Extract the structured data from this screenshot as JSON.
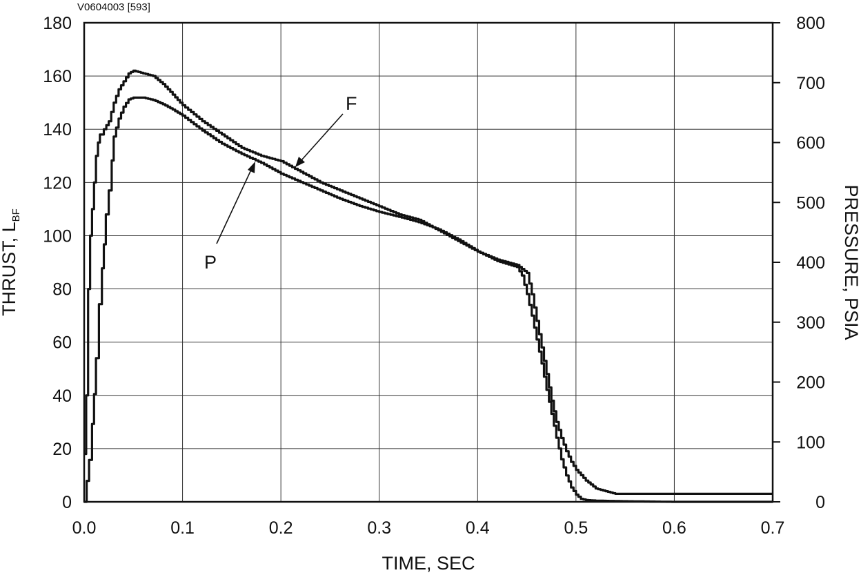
{
  "figure_id": "V0604003 [593]",
  "chart_data": {
    "type": "line",
    "xlabel": "TIME, SEC",
    "ylabel_main": "THRUST, L",
    "ylabel_sub": "BF",
    "y2label": "PRESSURE, PSIA",
    "xlim": [
      0,
      0.7
    ],
    "ylim": [
      0,
      180
    ],
    "y2lim": [
      0,
      800
    ],
    "x_ticks": [
      "0.0",
      "0.1",
      "0.2",
      "0.3",
      "0.4",
      "0.5",
      "0.6",
      "0.7"
    ],
    "y_ticks": [
      "0",
      "20",
      "40",
      "60",
      "80",
      "100",
      "120",
      "140",
      "160",
      "180"
    ],
    "y2_ticks": [
      "0",
      "100",
      "200",
      "300",
      "400",
      "500",
      "600",
      "700",
      "800"
    ],
    "grid": true,
    "series": [
      {
        "name": "F",
        "axis": "left",
        "x": [
          0.0,
          0.002,
          0.004,
          0.006,
          0.008,
          0.01,
          0.012,
          0.014,
          0.016,
          0.02,
          0.025,
          0.03,
          0.035,
          0.04,
          0.045,
          0.05,
          0.06,
          0.07,
          0.08,
          0.09,
          0.1,
          0.12,
          0.14,
          0.16,
          0.18,
          0.2,
          0.22,
          0.24,
          0.26,
          0.28,
          0.3,
          0.32,
          0.34,
          0.36,
          0.38,
          0.4,
          0.42,
          0.44,
          0.45,
          0.455,
          0.46,
          0.465,
          0.47,
          0.475,
          0.48,
          0.485,
          0.49,
          0.495,
          0.5,
          0.51,
          0.52,
          0.53,
          0.54,
          0.55,
          0.6,
          0.65,
          0.7
        ],
        "y": [
          18,
          40,
          80,
          100,
          110,
          120,
          130,
          135,
          138,
          140,
          143,
          150,
          155,
          158,
          161,
          162,
          161,
          160,
          157,
          153,
          149,
          143,
          138,
          133,
          130,
          128,
          124,
          120,
          117,
          114,
          111,
          108,
          106,
          102,
          98,
          94,
          91,
          89,
          86,
          78,
          68,
          58,
          48,
          38,
          30,
          24,
          19,
          15,
          12,
          8,
          5,
          4,
          3,
          3,
          3,
          3,
          3
        ]
      },
      {
        "name": "P",
        "axis": "right",
        "x": [
          0.0,
          0.005,
          0.008,
          0.01,
          0.012,
          0.015,
          0.018,
          0.02,
          0.022,
          0.025,
          0.028,
          0.03,
          0.035,
          0.04,
          0.045,
          0.05,
          0.06,
          0.07,
          0.08,
          0.09,
          0.1,
          0.12,
          0.14,
          0.16,
          0.18,
          0.2,
          0.22,
          0.24,
          0.26,
          0.28,
          0.3,
          0.32,
          0.34,
          0.36,
          0.38,
          0.4,
          0.42,
          0.44,
          0.445,
          0.45,
          0.455,
          0.46,
          0.465,
          0.47,
          0.475,
          0.48,
          0.485,
          0.49,
          0.495,
          0.5,
          0.505,
          0.51,
          0.52,
          0.55,
          0.6,
          0.65,
          0.7
        ],
        "y": [
          0,
          70,
          130,
          180,
          240,
          330,
          390,
          430,
          480,
          520,
          570,
          610,
          640,
          660,
          672,
          675,
          675,
          671,
          664,
          655,
          645,
          620,
          598,
          581,
          566,
          548,
          534,
          520,
          506,
          494,
          484,
          476,
          467,
          455,
          438,
          418,
          402,
          392,
          378,
          347,
          311,
          271,
          231,
          187,
          147,
          107,
          71,
          44,
          24,
          12,
          5,
          3,
          2,
          1,
          0,
          0,
          0
        ]
      }
    ]
  }
}
